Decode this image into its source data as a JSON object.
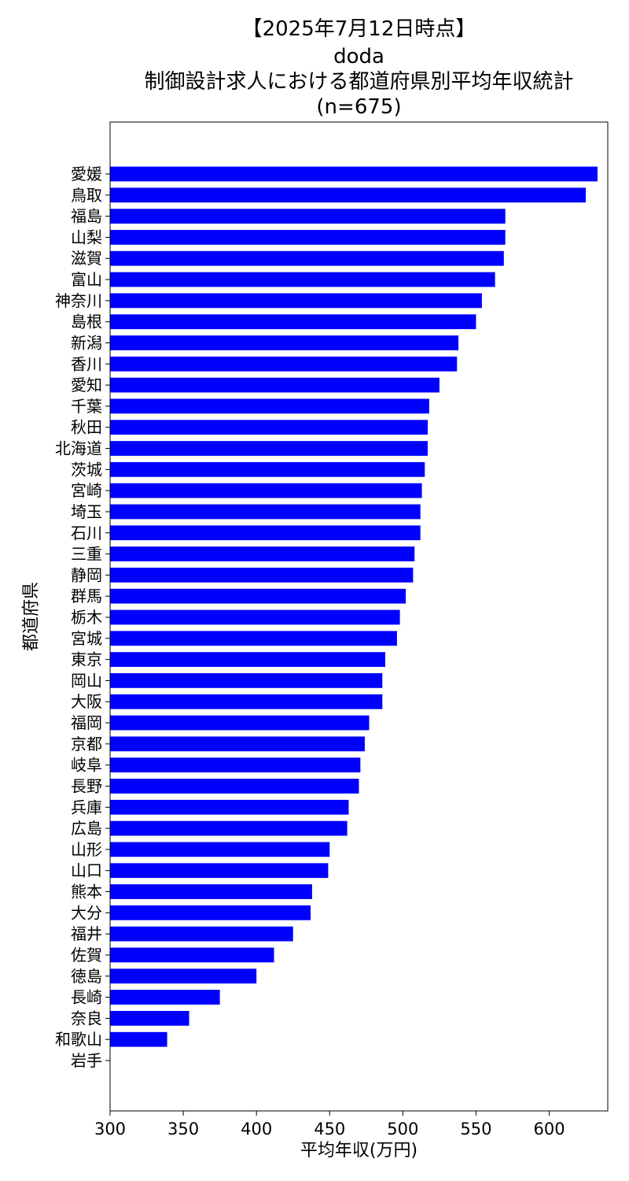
{
  "chart_data": {
    "type": "bar",
    "orientation": "horizontal",
    "title_lines": [
      "【2025年7月12日時点】",
      "doda",
      "制御設計求人における都道府県別平均年収統計",
      "(n=675)"
    ],
    "xlabel": "平均年収(万円)",
    "ylabel": "都道府県",
    "xlim": [
      300,
      640
    ],
    "xticks": [
      300,
      350,
      400,
      450,
      500,
      550,
      600
    ],
    "bar_color": "#0000ff",
    "grid": false,
    "categories": [
      "愛媛",
      "鳥取",
      "福島",
      "山梨",
      "滋賀",
      "富山",
      "神奈川",
      "島根",
      "新潟",
      "香川",
      "愛知",
      "千葉",
      "秋田",
      "北海道",
      "茨城",
      "宮崎",
      "埼玉",
      "石川",
      "三重",
      "静岡",
      "群馬",
      "栃木",
      "宮城",
      "東京",
      "岡山",
      "大阪",
      "福岡",
      "京都",
      "岐阜",
      "長野",
      "兵庫",
      "広島",
      "山形",
      "山口",
      "熊本",
      "大分",
      "福井",
      "佐賀",
      "徳島",
      "長崎",
      "奈良",
      "和歌山",
      "岩手"
    ],
    "values": [
      633,
      625,
      570,
      570,
      569,
      563,
      554,
      550,
      538,
      537,
      525,
      518,
      517,
      517,
      515,
      513,
      512,
      512,
      508,
      507,
      502,
      498,
      496,
      488,
      486,
      486,
      477,
      474,
      471,
      470,
      463,
      462,
      450,
      449,
      438,
      437,
      425,
      412,
      400,
      375,
      354,
      339,
      300
    ]
  }
}
